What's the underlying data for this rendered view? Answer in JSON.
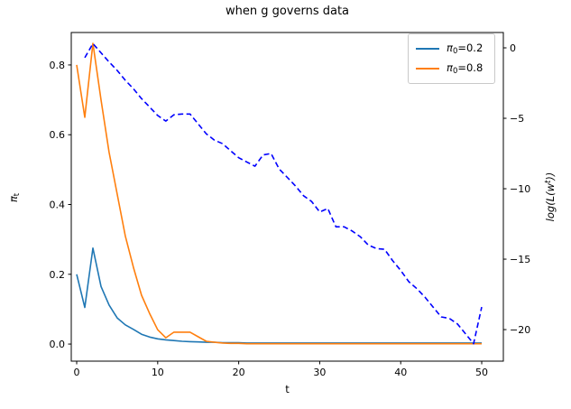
{
  "figure": {
    "title": "when g governs data",
    "xlabel": "t",
    "ylabel_left": {
      "symbol": "π",
      "subscript": "t",
      "text": "π_t"
    },
    "ylabel_right": {
      "pre": "log(L(w",
      "sup": "t",
      "post": "))",
      "text": "log(L(w^t))"
    },
    "background_color": "#ffffff",
    "spine_color": "#000000"
  },
  "legend": {
    "position": "upper right",
    "items": [
      {
        "symbol": "π",
        "sub": "0",
        "eq": "=0.2",
        "label": "π0=0.2",
        "color": "#1f77b4",
        "style": "solid"
      },
      {
        "symbol": "π",
        "sub": "0",
        "eq": "=0.8",
        "label": "π0=0.8",
        "color": "#ff7f0e",
        "style": "solid"
      }
    ]
  },
  "chart_data": {
    "type": "line",
    "title": "when g governs data",
    "xlabel": "t",
    "ylabel_left": "π_t",
    "ylabel_right": "log(L(w^t))",
    "grid": false,
    "legend_position": "upper right",
    "xlim": [
      -0.67,
      52.67
    ],
    "ylim_left": [
      -0.049,
      0.893
    ],
    "ylim_right": [
      -22.24,
      1.09
    ],
    "x_ticks": [
      0,
      10,
      20,
      30,
      40,
      50
    ],
    "x_tick_labels": [
      "0",
      "10",
      "20",
      "30",
      "40",
      "50"
    ],
    "y_ticks_left": [
      0.0,
      0.2,
      0.4,
      0.6,
      0.8
    ],
    "y_tick_labels_left": [
      "0.0",
      "0.2",
      "0.4",
      "0.6",
      "0.8"
    ],
    "y_ticks_right": [
      0,
      -5,
      -10,
      -15,
      -20
    ],
    "y_tick_labels_right": [
      "0",
      "−5",
      "−10",
      "−15",
      "−20"
    ],
    "series": [
      {
        "name": "pi0=0.2",
        "legend_label": "π0=0.2",
        "axis": "left",
        "color": "#1f77b4",
        "style": "solid",
        "x": [
          0,
          1,
          2,
          3,
          4,
          5,
          6,
          7,
          8,
          9,
          10,
          11,
          12,
          13,
          14,
          15,
          16,
          17,
          18,
          19,
          20,
          21,
          22,
          23,
          24,
          25,
          26,
          27,
          28,
          29,
          30,
          31,
          32,
          33,
          34,
          35,
          36,
          37,
          38,
          39,
          40,
          41,
          42,
          43,
          44,
          45,
          46,
          47,
          48,
          49,
          50
        ],
        "values": [
          0.2,
          0.105,
          0.275,
          0.165,
          0.112,
          0.075,
          0.055,
          0.042,
          0.028,
          0.02,
          0.015,
          0.012,
          0.01,
          0.008,
          0.007,
          0.006,
          0.005,
          0.005,
          0.004,
          0.004,
          0.004,
          0.003,
          0.003,
          0.003,
          0.003,
          0.003,
          0.003,
          0.003,
          0.003,
          0.003,
          0.003,
          0.003,
          0.003,
          0.003,
          0.003,
          0.003,
          0.003,
          0.003,
          0.003,
          0.003,
          0.003,
          0.003,
          0.003,
          0.003,
          0.003,
          0.003,
          0.003,
          0.003,
          0.003,
          0.003,
          0.003
        ]
      },
      {
        "name": "pi0=0.8",
        "legend_label": "π0=0.8",
        "axis": "left",
        "color": "#ff7f0e",
        "style": "solid",
        "x": [
          0,
          1,
          2,
          3,
          4,
          5,
          6,
          7,
          8,
          9,
          10,
          11,
          12,
          13,
          14,
          15,
          16,
          17,
          18,
          19,
          20,
          21,
          22,
          23,
          24,
          25,
          26,
          27,
          28,
          29,
          30,
          31,
          32,
          33,
          34,
          35,
          36,
          37,
          38,
          39,
          40,
          41,
          42,
          43,
          44,
          45,
          46,
          47,
          48,
          49,
          50
        ],
        "values": [
          0.8,
          0.65,
          0.862,
          0.7,
          0.55,
          0.43,
          0.31,
          0.22,
          0.14,
          0.088,
          0.041,
          0.018,
          0.034,
          0.034,
          0.034,
          0.021,
          0.008,
          0.005,
          0.003,
          0.002,
          0.002,
          0.001,
          0.001,
          0.001,
          0.001,
          0.001,
          0.001,
          0.001,
          0.001,
          0.001,
          0.001,
          0.001,
          0.001,
          0.001,
          0.001,
          0.001,
          0.001,
          0.001,
          0.001,
          0.001,
          0.001,
          0.001,
          0.001,
          0.001,
          0.001,
          0.001,
          0.001,
          0.001,
          0.001,
          0.001,
          0.001
        ]
      },
      {
        "name": "log-likelihood",
        "legend_label": null,
        "axis": "right",
        "color": "#0000ff",
        "style": "dashed",
        "x": [
          1,
          2,
          3,
          4,
          5,
          6,
          7,
          8,
          9,
          10,
          11,
          12,
          13,
          14,
          15,
          16,
          17,
          18,
          19,
          20,
          21,
          22,
          23,
          24,
          25,
          26,
          27,
          28,
          29,
          30,
          31,
          32,
          33,
          34,
          35,
          36,
          37,
          38,
          39,
          40,
          41,
          42,
          43,
          44,
          45,
          46,
          47,
          48,
          49,
          50
        ],
        "values": [
          -0.7,
          0.3,
          -0.35,
          -1.0,
          -1.6,
          -2.3,
          -2.9,
          -3.6,
          -4.2,
          -4.8,
          -5.2,
          -4.75,
          -4.7,
          -4.7,
          -5.4,
          -6.1,
          -6.55,
          -6.8,
          -7.3,
          -7.8,
          -8.1,
          -8.4,
          -7.6,
          -7.5,
          -8.6,
          -9.2,
          -9.8,
          -10.5,
          -10.9,
          -11.65,
          -11.4,
          -12.7,
          -12.7,
          -13.0,
          -13.4,
          -14.0,
          -14.25,
          -14.3,
          -15.1,
          -15.8,
          -16.6,
          -17.1,
          -17.7,
          -18.4,
          -19.1,
          -19.2,
          -19.6,
          -20.3,
          -21.0,
          -18.4
        ]
      }
    ]
  }
}
